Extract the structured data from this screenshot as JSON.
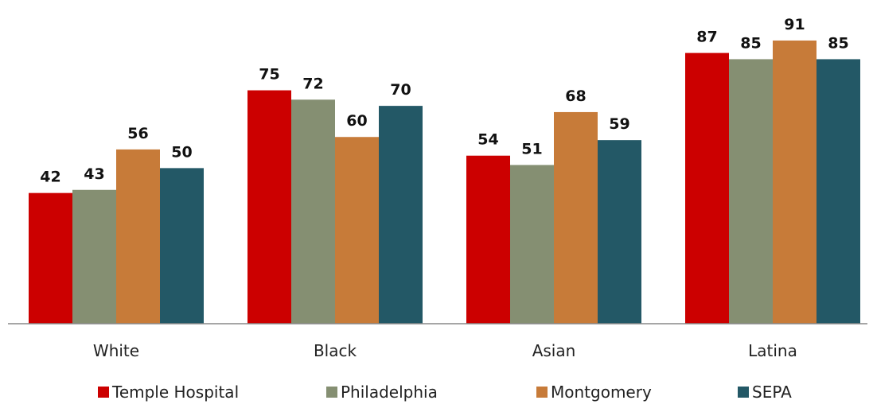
{
  "chart_data": {
    "type": "bar",
    "title": "",
    "xlabel": "",
    "ylabel": "",
    "categories": [
      "White",
      "Black",
      "Asian",
      "Latina"
    ],
    "series": [
      {
        "name": "Temple Hospital",
        "color": "#cc0000",
        "values": [
          42,
          75,
          54,
          87
        ]
      },
      {
        "name": "Philadelphia",
        "color": "#858f72",
        "values": [
          43,
          72,
          51,
          85
        ]
      },
      {
        "name": "Montgomery",
        "color": "#c77b39",
        "values": [
          56,
          60,
          68,
          91
        ]
      },
      {
        "name": "SEPA",
        "color": "#235866",
        "values": [
          50,
          70,
          59,
          85
        ]
      }
    ],
    "ylim": [
      0,
      103
    ],
    "grid": false,
    "legend_position": "bottom",
    "axis_color": "#888888"
  }
}
